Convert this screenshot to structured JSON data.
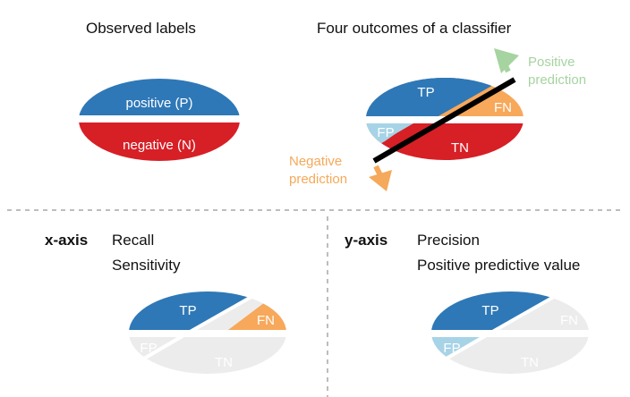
{
  "titles": {
    "observed": "Observed labels",
    "outcomes": "Four outcomes of a classifier"
  },
  "observed": {
    "positive": "positive (P)",
    "negative": "negative (N)"
  },
  "classifier": {
    "tp": "TP",
    "fn": "FN",
    "fp": "FP",
    "tn": "TN",
    "positive_prediction_line1": "Positive",
    "positive_prediction_line2": "prediction",
    "negative_prediction_line1": "Negative",
    "negative_prediction_line2": "prediction"
  },
  "xaxis": {
    "key": "x-axis",
    "term1": "Recall",
    "term2": "Sensitivity",
    "tp": "TP",
    "fn": "FN",
    "fp": "FP",
    "tn": "TN"
  },
  "yaxis": {
    "key": "y-axis",
    "term1": "Precision",
    "term2": "Positive predictive value",
    "tp": "TP",
    "fn": "FN",
    "fp": "FP",
    "tn": "TN"
  },
  "colors": {
    "tp": "#2e78b7",
    "fn": "#f7a85a",
    "fp": "#a7d3e6",
    "tn": "#d71f26",
    "faded": "#ececec",
    "positive_arrow": "#a6d4a0",
    "negative_arrow": "#f5a95a",
    "divider": "#bdbdbd"
  }
}
